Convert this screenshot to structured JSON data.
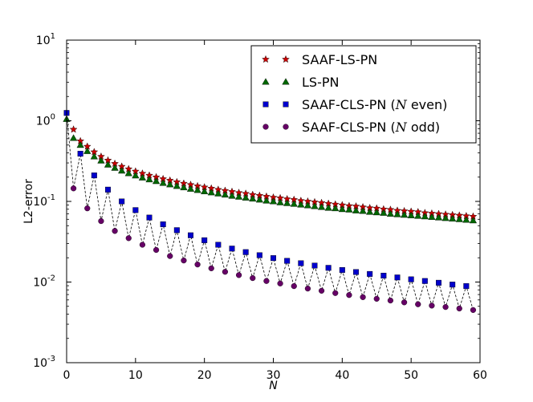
{
  "chart_data": {
    "type": "scatter",
    "title": "",
    "xlabel": "N",
    "ylabel": "L2-error",
    "xlim": [
      0,
      60
    ],
    "ylim_log10": [
      -3,
      1
    ],
    "yscale": "log",
    "x_ticks": [
      {
        "value": 0,
        "label": "0"
      },
      {
        "value": 10,
        "label": "10"
      },
      {
        "value": 20,
        "label": "20"
      },
      {
        "value": 30,
        "label": "30"
      },
      {
        "value": 40,
        "label": "40"
      },
      {
        "value": 50,
        "label": "50"
      },
      {
        "value": 60,
        "label": "60"
      }
    ],
    "y_ticks": [
      {
        "exp": -3,
        "base": "10",
        "sup": "-3"
      },
      {
        "exp": -2,
        "base": "10",
        "sup": "-2"
      },
      {
        "exp": -1,
        "base": "10",
        "sup": "-1"
      },
      {
        "exp": 0,
        "base": "10",
        "sup": "0"
      },
      {
        "exp": 1,
        "base": "10",
        "sup": "1"
      }
    ],
    "legend_position": "top-right",
    "series": [
      {
        "name": "SAAF-LS-PN",
        "legend_parts": [
          "SAAF-LS-PN"
        ],
        "marker": "star",
        "color": "#cc0000",
        "x": [
          1,
          2,
          3,
          4,
          5,
          6,
          7,
          8,
          9,
          10,
          11,
          12,
          13,
          14,
          15,
          16,
          17,
          18,
          19,
          20,
          21,
          22,
          23,
          24,
          25,
          26,
          27,
          28,
          29,
          30,
          31,
          32,
          33,
          34,
          35,
          36,
          37,
          38,
          39,
          40,
          41,
          42,
          43,
          44,
          45,
          46,
          47,
          48,
          49,
          50,
          51,
          52,
          53,
          54,
          55,
          56,
          57,
          58,
          59
        ],
        "values": [
          0.78,
          0.56,
          0.48,
          0.41,
          0.36,
          0.323,
          0.294,
          0.271,
          0.252,
          0.236,
          0.222,
          0.21,
          0.2,
          0.19,
          0.182,
          0.174,
          0.167,
          0.161,
          0.155,
          0.15,
          0.145,
          0.14,
          0.136,
          0.132,
          0.128,
          0.125,
          0.121,
          0.118,
          0.115,
          0.112,
          0.11,
          0.107,
          0.105,
          0.102,
          0.1,
          0.098,
          0.096,
          0.094,
          0.092,
          0.09,
          0.088,
          0.087,
          0.085,
          0.083,
          0.082,
          0.08,
          0.079,
          0.077,
          0.076,
          0.075,
          0.074,
          0.072,
          0.071,
          0.07,
          0.069,
          0.068,
          0.067,
          0.066,
          0.065
        ]
      },
      {
        "name": "LS-PN",
        "legend_parts": [
          "LS-PN"
        ],
        "marker": "triangle",
        "color": "#006600",
        "x": [
          0,
          1,
          2,
          3,
          4,
          5,
          6,
          7,
          8,
          9,
          10,
          11,
          12,
          13,
          14,
          15,
          16,
          17,
          18,
          19,
          20,
          21,
          22,
          23,
          24,
          25,
          26,
          27,
          28,
          29,
          30,
          31,
          32,
          33,
          34,
          35,
          36,
          37,
          38,
          39,
          40,
          41,
          42,
          43,
          44,
          45,
          46,
          47,
          48,
          49,
          50,
          51,
          52,
          53,
          54,
          55,
          56,
          57,
          58,
          59
        ],
        "values": [
          1.05,
          0.61,
          0.5,
          0.42,
          0.36,
          0.32,
          0.285,
          0.26,
          0.24,
          0.223,
          0.209,
          0.197,
          0.187,
          0.178,
          0.169,
          0.162,
          0.155,
          0.149,
          0.143,
          0.138,
          0.133,
          0.129,
          0.125,
          0.121,
          0.117,
          0.114,
          0.111,
          0.108,
          0.105,
          0.102,
          0.1,
          0.097,
          0.095,
          0.093,
          0.091,
          0.089,
          0.087,
          0.085,
          0.083,
          0.082,
          0.08,
          0.079,
          0.077,
          0.076,
          0.074,
          0.073,
          0.072,
          0.07,
          0.069,
          0.068,
          0.067,
          0.066,
          0.065,
          0.064,
          0.063,
          0.062,
          0.061,
          0.06,
          0.059,
          0.058
        ]
      },
      {
        "name": "SAAF-CLS-PN (N even)",
        "legend_parts": [
          "SAAF-CLS-PN (",
          "N",
          " even)"
        ],
        "marker": "square",
        "color": "#0000cc",
        "x": [
          0,
          2,
          4,
          6,
          8,
          10,
          12,
          14,
          16,
          18,
          20,
          22,
          24,
          26,
          28,
          30,
          32,
          34,
          36,
          38,
          40,
          42,
          44,
          46,
          48,
          50,
          52,
          54,
          56,
          58
        ],
        "values": [
          1.25,
          0.39,
          0.21,
          0.14,
          0.1,
          0.078,
          0.063,
          0.052,
          0.044,
          0.038,
          0.033,
          0.029,
          0.026,
          0.0235,
          0.0215,
          0.0198,
          0.0183,
          0.0171,
          0.016,
          0.015,
          0.0141,
          0.0133,
          0.0126,
          0.012,
          0.0114,
          0.0108,
          0.0103,
          0.0098,
          0.0093,
          0.0089
        ]
      },
      {
        "name": "SAAF-CLS-PN (N odd)",
        "legend_parts": [
          "SAAF-CLS-PN (",
          "N",
          " odd)"
        ],
        "marker": "circle",
        "color": "#660066",
        "x": [
          1,
          3,
          5,
          7,
          9,
          11,
          13,
          15,
          17,
          19,
          21,
          23,
          25,
          27,
          29,
          31,
          33,
          35,
          37,
          39,
          41,
          43,
          45,
          47,
          49,
          51,
          53,
          55,
          57,
          59
        ],
        "values": [
          0.145,
          0.082,
          0.057,
          0.043,
          0.035,
          0.029,
          0.025,
          0.021,
          0.0185,
          0.0165,
          0.0148,
          0.0134,
          0.0122,
          0.0112,
          0.0103,
          0.0096,
          0.0089,
          0.0083,
          0.0078,
          0.0073,
          0.0069,
          0.0065,
          0.0062,
          0.0059,
          0.0056,
          0.0053,
          0.0051,
          0.0049,
          0.0047,
          0.0045
        ]
      }
    ]
  }
}
